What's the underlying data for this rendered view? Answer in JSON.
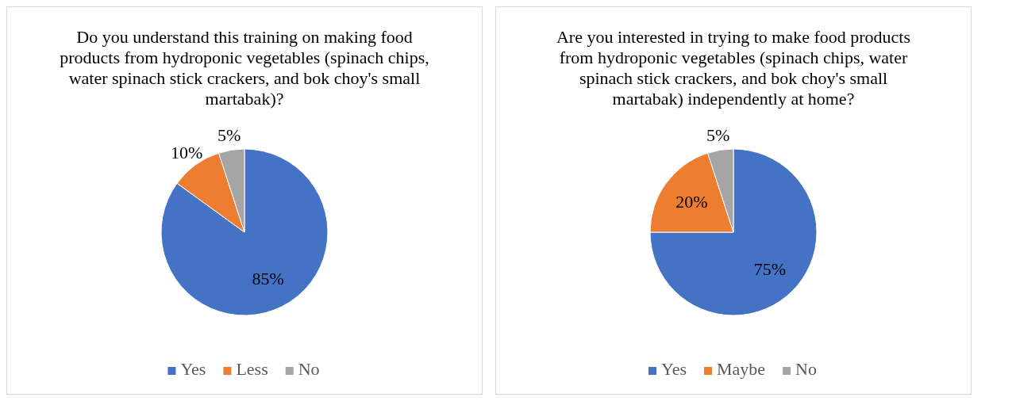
{
  "chart_data": [
    {
      "type": "pie",
      "title": "Do you understand this training on making food products from hydroponic vegetables (spinach chips, water spinach stick crackers, and bok choy's small martabak)?",
      "categories": [
        "Yes",
        "Less",
        "No"
      ],
      "values": [
        85,
        10,
        5
      ],
      "value_labels": [
        "85%",
        "10%",
        "5%"
      ],
      "colors": [
        "#4472c4",
        "#ed7d31",
        "#a5a5a5"
      ],
      "legend": "bottom"
    },
    {
      "type": "pie",
      "title": "Are you interested in trying to make food products from hydroponic vegetables  (spinach chips, water spinach stick crackers, and bok choy's small martabak) independently at home?",
      "categories": [
        "Yes",
        "Maybe",
        "No"
      ],
      "values": [
        75,
        20,
        5
      ],
      "value_labels": [
        "75%",
        "20%",
        "5%"
      ],
      "colors": [
        "#4472c4",
        "#ed7d31",
        "#a5a5a5"
      ],
      "legend": "bottom"
    }
  ]
}
